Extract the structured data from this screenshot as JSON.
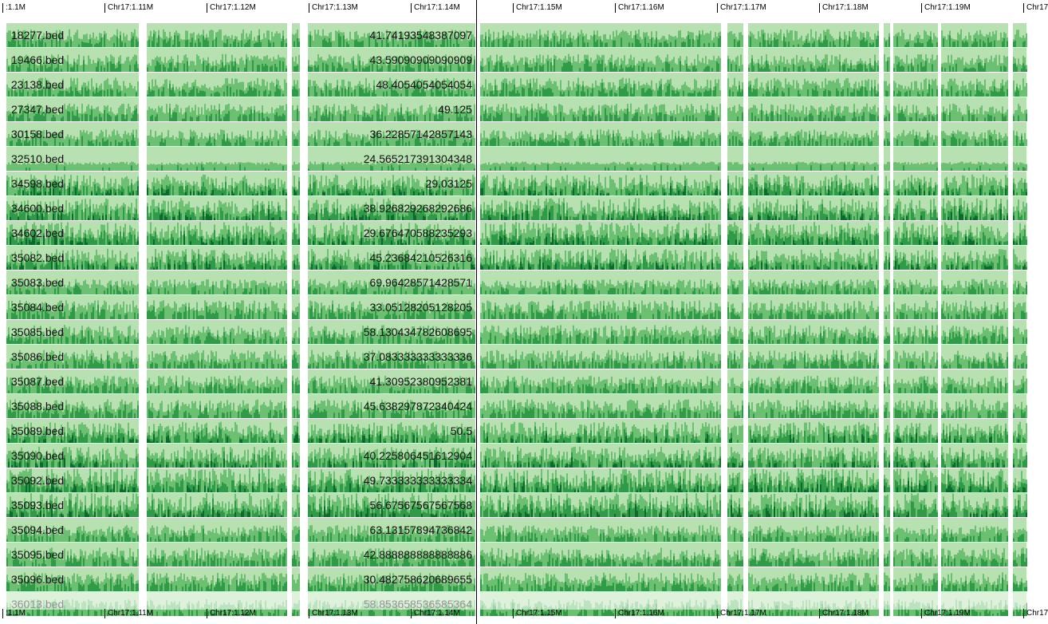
{
  "axis": {
    "ticks": [
      {
        "label": ":1.1M",
        "pos": 0
      },
      {
        "label": "Chr17:1.11M",
        "pos": 1
      },
      {
        "label": "Chr17:1.12M",
        "pos": 2
      },
      {
        "label": "Chr17:1.13M",
        "pos": 3
      },
      {
        "label": "Chr17:1.14M",
        "pos": 4
      },
      {
        "label": "Chr17:1.15M",
        "pos": 5
      },
      {
        "label": "Chr17:1.16M",
        "pos": 6
      },
      {
        "label": "Chr17:1.17M",
        "pos": 7
      },
      {
        "label": "Chr17:1.18M",
        "pos": 8
      },
      {
        "label": "Chr17:1.19M",
        "pos": 9
      },
      {
        "label": "Chr17",
        "pos": 10
      }
    ]
  },
  "colors": {
    "light": "#b7e1b0",
    "mid": "#6cc072",
    "dark": "#2f9a48",
    "darkest": "#0c6a2c"
  },
  "tracks": [
    {
      "name": "18277.bed",
      "value": "41.74193548387097",
      "level": 0.55
    },
    {
      "name": "19466.bed",
      "value": "43.59090909090909",
      "level": 0.55
    },
    {
      "name": "23138.bed",
      "value": "48.4054054054054",
      "level": 0.6
    },
    {
      "name": "27347.bed",
      "value": "49.125",
      "level": 0.55
    },
    {
      "name": "30158.bed",
      "value": "36.22857142857143",
      "level": 0.5
    },
    {
      "name": "32510.bed",
      "value": "24.565217391304348",
      "level": 0.15
    },
    {
      "name": "34598.bed",
      "value": "29.03125",
      "level": 0.7
    },
    {
      "name": "34600.bed",
      "value": "38.926829268292686",
      "level": 0.75
    },
    {
      "name": "34602.bed",
      "value": "29.676470588235293",
      "level": 0.8
    },
    {
      "name": "35082.bed",
      "value": "45.23684210526316",
      "level": 0.7
    },
    {
      "name": "35083.bed",
      "value": "69.96428571428571",
      "level": 0.45
    },
    {
      "name": "35084.bed",
      "value": "33.05128205128205",
      "level": 0.6
    },
    {
      "name": "35085.bed",
      "value": "58.130434782608695",
      "level": 0.6
    },
    {
      "name": "35086.bed",
      "value": "37.083333333333336",
      "level": 0.6
    },
    {
      "name": "35087.bed",
      "value": "41.30952380952381",
      "level": 0.55
    },
    {
      "name": "35088.bed",
      "value": "45.638297872340424",
      "level": 0.6
    },
    {
      "name": "35089.bed",
      "value": "50.5",
      "level": 0.7
    },
    {
      "name": "35090.bed",
      "value": "40.225806451612904",
      "level": 0.7
    },
    {
      "name": "35092.bed",
      "value": "49.733333333333334",
      "level": 0.85
    },
    {
      "name": "35093.bed",
      "value": "56.67567567567568",
      "level": 0.85
    },
    {
      "name": "35094.bed",
      "value": "63.13157894736842",
      "level": 0.5
    },
    {
      "name": "35095.bed",
      "value": "42.888888888888886",
      "level": 0.6
    },
    {
      "name": "35096.bed",
      "value": "30.482758620689655",
      "level": 0.6
    },
    {
      "name": "36013.bed",
      "value": "58.853658536585364",
      "level": 0.5
    }
  ]
}
